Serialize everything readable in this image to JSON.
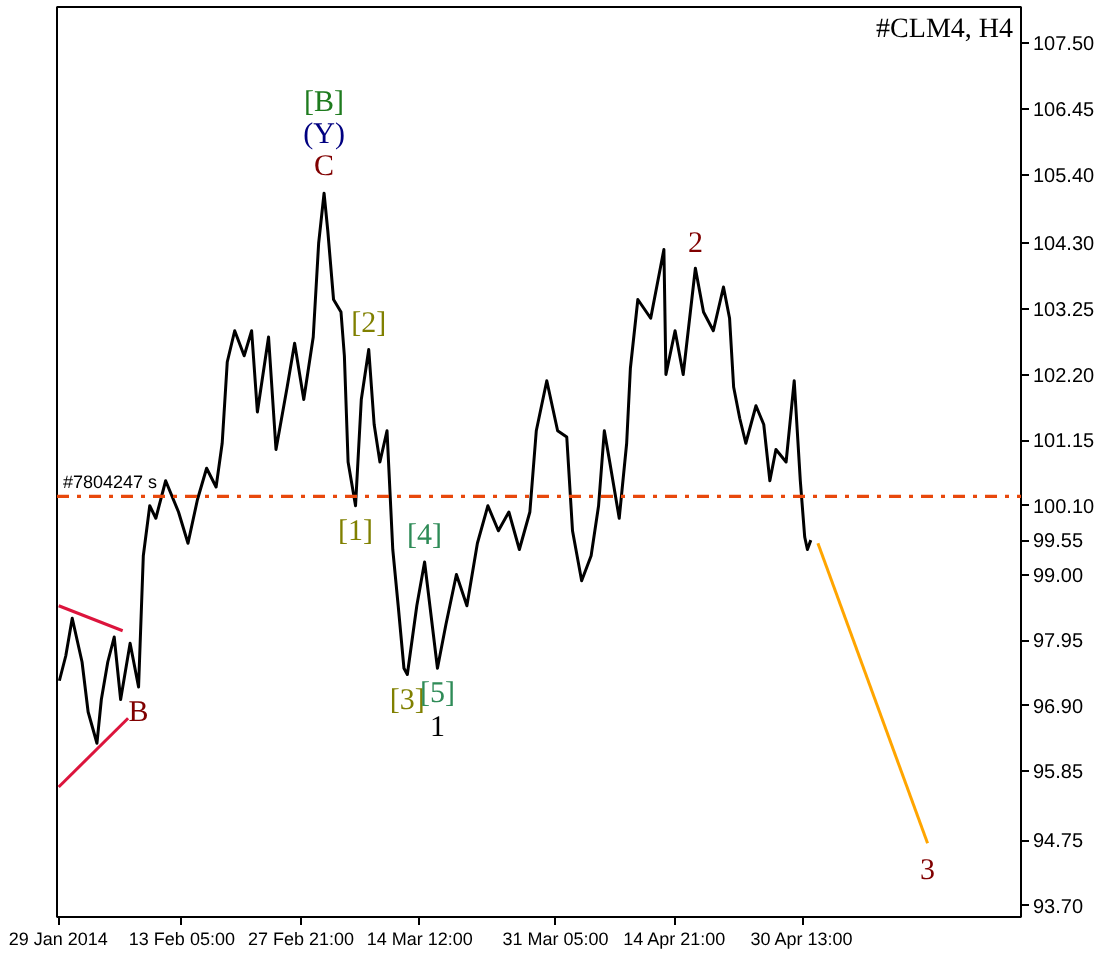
{
  "chart_data": {
    "type": "line",
    "title": "#CLM4, H4",
    "x": [
      "2014-01-29T03:00",
      "2014-01-29T22:00",
      "2014-01-30T17:00",
      "2014-01-31T22:00",
      "2014-02-01T16:00",
      "2014-02-02T18:00",
      "2014-02-03T07:00",
      "2014-02-04T02:00",
      "2014-02-04T21:00",
      "2014-02-05T16:00",
      "2014-02-06T20:00",
      "2014-02-07T21:00",
      "2014-02-08T11:00",
      "2014-02-09T06:00",
      "2014-02-10T00:00",
      "2014-02-11T05:00",
      "2014-02-12T19:00",
      "2014-02-13T23:00",
      "2014-02-15T03:00",
      "2014-02-16T06:00",
      "2014-02-17T10:00",
      "2014-02-18T04:00",
      "2014-02-18T19:00",
      "2014-02-19T17:00",
      "2014-02-20T21:00",
      "2014-02-21T19:00",
      "2014-02-22T12:00",
      "2014-02-23T21:00",
      "2014-02-24T19:00",
      "2014-02-26T04:00",
      "2014-02-27T02:00",
      "2014-02-28T05:00",
      "2014-03-01T09:00",
      "2014-03-02T01:00",
      "2014-03-02T17:00",
      "2014-03-03T04:00",
      "2014-03-03T21:00",
      "2014-03-04T19:00",
      "2014-03-05T05:00",
      "2014-03-05T16:00",
      "2014-03-06T14:00",
      "2014-03-07T07:00",
      "2014-03-08T05:00",
      "2014-03-08T21:00",
      "2014-03-09T14:00",
      "2014-03-10T11:00",
      "2014-03-11T04:00",
      "2014-03-11T20:00",
      "2014-03-12T13:00",
      "2014-03-12T23:00",
      "2014-03-14T03:00",
      "2014-03-15T02:00",
      "2014-03-16T16:00",
      "2014-03-17T17:00",
      "2014-03-19T00:00",
      "2014-03-20T07:00",
      "2014-03-21T14:00",
      "2014-03-22T21:00",
      "2014-03-24T04:00",
      "2014-03-25T11:00",
      "2014-03-26T18:00",
      "2014-03-28T01:00",
      "2014-03-28T20:00",
      "2014-03-30T03:00",
      "2014-03-31T11:00",
      "2014-04-01T14:00",
      "2014-04-02T07:00",
      "2014-04-03T10:00",
      "2014-04-04T14:00",
      "2014-04-05T12:00",
      "2014-04-06T05:00",
      "2014-04-06T21:00",
      "2014-04-08T01:00",
      "2014-04-08T23:00",
      "2014-04-09T10:00",
      "2014-04-10T08:00",
      "2014-04-11T22:00",
      "2014-04-13T13:00",
      "2014-04-13T19:00",
      "2014-04-14T22:00",
      "2014-04-15T22:00",
      "2014-04-17T10:00",
      "2014-04-18T10:00",
      "2014-04-19T15:00",
      "2014-04-20T21:00",
      "2014-04-21T15:00",
      "2014-04-22T03:00",
      "2014-04-22T21:00",
      "2014-04-23T15:00",
      "2014-04-24T21:00",
      "2014-04-25T20:00",
      "2014-04-26T14:00",
      "2014-04-27T08:00",
      "2014-04-28T14:00",
      "2014-04-29T14:00",
      "2014-04-30T08:00",
      "2014-04-30T21:00",
      "2014-05-01T05:00",
      "2014-05-01T15:00"
    ],
    "series": [
      {
        "color": "#000000",
        "values": [
          97.3,
          97.7,
          98.3,
          97.6,
          96.8,
          96.3,
          97.0,
          97.6,
          98.0,
          97.0,
          97.9,
          97.2,
          99.3,
          100.1,
          99.9,
          100.5,
          100.0,
          99.5,
          100.2,
          100.7,
          100.4,
          101.1,
          102.4,
          102.9,
          102.5,
          102.9,
          101.6,
          102.8,
          101.0,
          102.0,
          102.7,
          101.8,
          102.8,
          104.3,
          105.1,
          104.5,
          103.4,
          103.2,
          102.5,
          100.8,
          100.1,
          101.8,
          102.6,
          101.4,
          100.8,
          101.3,
          99.4,
          98.5,
          97.5,
          97.4,
          98.5,
          99.2,
          97.5,
          98.2,
          99.0,
          98.5,
          99.5,
          100.1,
          99.7,
          100.0,
          99.4,
          100.0,
          101.3,
          102.1,
          101.3,
          101.2,
          99.7,
          98.9,
          99.3,
          100.1,
          101.3,
          100.8,
          99.9,
          101.1,
          102.3,
          103.4,
          103.1,
          104.2,
          102.2,
          102.9,
          102.2,
          103.9,
          103.2,
          102.9,
          103.6,
          103.1,
          102.0,
          101.5,
          101.1,
          101.7,
          101.4,
          100.5,
          101.0,
          100.8,
          102.1,
          100.5,
          99.6,
          99.4,
          99.55
        ]
      },
      {
        "color": "#dc143c",
        "x": [
          "2014-01-29T01:00",
          "2014-02-05T22:00"
        ],
        "values": [
          98.5,
          98.1
        ]
      },
      {
        "color": "#dc143c",
        "x": [
          "2014-01-29T01:00",
          "2014-02-06T14:00"
        ],
        "values": [
          95.6,
          96.7
        ]
      },
      {
        "color": "#ffa500",
        "x": [
          "2014-05-02T12:00",
          "2014-05-16T00:00"
        ],
        "values": [
          99.5,
          94.7
        ]
      }
    ],
    "xlim": [
      "2014-01-28T20:00",
      "2014-05-27T12:00"
    ],
    "xticks": [
      {
        "value": "2014-01-29T00:00",
        "label": "29 Jan 2014"
      },
      {
        "value": "2014-02-13T05:00",
        "label": "13 Feb 05:00"
      },
      {
        "value": "2014-02-27T21:00",
        "label": "27 Feb 21:00"
      },
      {
        "value": "2014-03-14T12:00",
        "label": "14 Mar 12:00"
      },
      {
        "value": "2014-03-31T05:00",
        "label": "31 Mar 05:00"
      },
      {
        "value": "2014-04-14T21:00",
        "label": "14 Apr 21:00"
      },
      {
        "value": "2014-04-30T13:00",
        "label": "30 Apr 13:00"
      }
    ],
    "ylim": [
      93.52,
      108.08
    ],
    "yticks": [
      {
        "value": 107.5,
        "label": "107.50"
      },
      {
        "value": 106.45,
        "label": "106.45"
      },
      {
        "value": 105.4,
        "label": "105.40"
      },
      {
        "value": 104.3,
        "label": "104.30"
      },
      {
        "value": 103.25,
        "label": "103.25"
      },
      {
        "value": 102.2,
        "label": "102.20"
      },
      {
        "value": 101.15,
        "label": "101.15"
      },
      {
        "value": 100.1,
        "label": "100.10"
      },
      99.55,
      {
        "value": 99.0,
        "label": "99.00"
      },
      {
        "value": 97.95,
        "label": "97.95"
      },
      {
        "value": 96.9,
        "label": "96.90"
      },
      {
        "value": 95.85,
        "label": "95.85"
      },
      {
        "value": 94.75,
        "label": "94.75"
      },
      {
        "value": 93.7,
        "label": "93.70"
      }
    ],
    "ref_lines": [
      {
        "axis": "y",
        "value": 100.25,
        "label": "#7804247 s",
        "color": "#e8480c",
        "line_style": "dashdot"
      }
    ],
    "annotations": [
      {
        "text": "[B]",
        "x": "2014-03-02T17:00",
        "y": 105.1
      },
      {
        "text": "(Y)",
        "x": "2014-03-02T17:00",
        "y": 105.1
      },
      {
        "text": "C",
        "x": "2014-03-02T17:00",
        "y": 105.1
      },
      {
        "text": "[2]",
        "x": "2014-03-08T05:00",
        "y": 102.6
      },
      {
        "text": "[1]",
        "x": "2014-03-06T14:00",
        "y": 100.1
      },
      {
        "text": "[4]",
        "x": "2014-03-15T02:00",
        "y": 99.2
      },
      {
        "text": "[3]",
        "x": "2014-03-12T23:00",
        "y": 97.4
      },
      {
        "text": "[5]",
        "x": "2014-03-16T16:00",
        "y": 97.5
      },
      {
        "text": "1",
        "x": "2014-03-16T16:00",
        "y": 97.5
      },
      {
        "text": "2",
        "x": "2014-04-17T10:00",
        "y": 103.9
      },
      {
        "text": "3",
        "x": "2014-05-16T00:00",
        "y": 94.7
      },
      {
        "text": "B",
        "x": "2014-02-07T21:00",
        "y": 97.2
      }
    ]
  }
}
